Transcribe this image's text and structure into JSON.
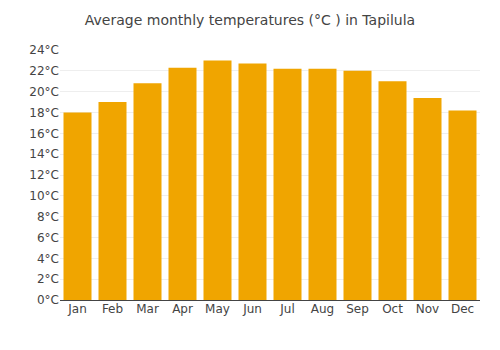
{
  "chart_data": {
    "type": "bar",
    "title": "Average monthly temperatures (°C ) in Tapilula",
    "categories": [
      "Jan",
      "Feb",
      "Mar",
      "Apr",
      "May",
      "Jun",
      "Jul",
      "Aug",
      "Sep",
      "Oct",
      "Nov",
      "Dec"
    ],
    "values": [
      18.0,
      19.0,
      20.8,
      22.3,
      23.0,
      22.7,
      22.2,
      22.2,
      22.0,
      21.0,
      19.4,
      18.2
    ],
    "color": "#F0A500",
    "ylim": [
      0,
      24
    ],
    "yticks": [
      {
        "value": 0,
        "label": "0°C"
      },
      {
        "value": 2,
        "label": "2°C"
      },
      {
        "value": 4,
        "label": "4°C"
      },
      {
        "value": 6,
        "label": "6°C"
      },
      {
        "value": 8,
        "label": "8°C"
      },
      {
        "value": 10,
        "label": "10°C"
      },
      {
        "value": 12,
        "label": "12°C"
      },
      {
        "value": 14,
        "label": "14°C"
      },
      {
        "value": 16,
        "label": "16°C"
      },
      {
        "value": 18,
        "label": "18°C"
      },
      {
        "value": 20,
        "label": "20°C"
      },
      {
        "value": 22,
        "label": "22°C"
      },
      {
        "value": 24,
        "label": "24°C"
      }
    ],
    "grid": true
  }
}
